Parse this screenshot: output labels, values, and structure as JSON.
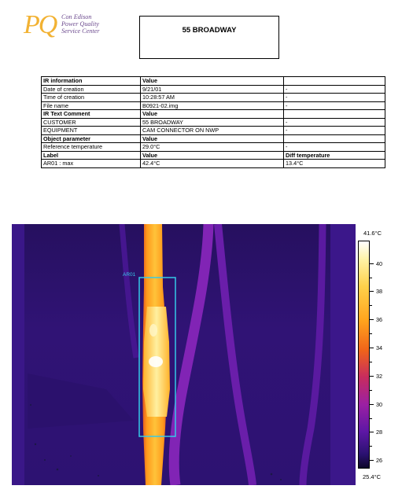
{
  "logo": {
    "mark": "PQ",
    "line1": "Con Edison",
    "line2": "Power Quality",
    "line3": "Service Center"
  },
  "title": "55 BROADWAY",
  "info_table": [
    {
      "cells": [
        "IR information",
        "Value",
        ""
      ],
      "header": true
    },
    {
      "cells": [
        "Date of creation",
        "9/21/01",
        "-"
      ]
    },
    {
      "cells": [
        "Time of creation",
        "10:28:57 AM",
        "-"
      ]
    },
    {
      "cells": [
        "File name",
        "B0921-02.img",
        "-"
      ]
    },
    {
      "cells": [
        "IR Text Comment",
        "Value",
        ""
      ],
      "header": true
    },
    {
      "cells": [
        "CUSTOMER",
        "55 BROADWAY",
        "-"
      ]
    },
    {
      "cells": [
        "EQUIPMENT",
        "CAM CONNECTOR ON NWP",
        "-"
      ]
    },
    {
      "cells": [
        "Object parameter",
        "Value",
        ""
      ],
      "header": true
    },
    {
      "cells": [
        "Reference temperature",
        "29.0°C",
        "-"
      ]
    },
    {
      "cells": [
        "Label",
        "Value",
        "Diff temperature"
      ],
      "header": true
    },
    {
      "cells": [
        "AR01 : max",
        "42.4°C",
        "13.4°C"
      ]
    }
  ],
  "thermal_image": {
    "region_label": "AR01"
  },
  "temperature_scale": {
    "max_label": "41.6°C",
    "min_label": "25.4°C",
    "min": 25.4,
    "max": 41.6,
    "tick_values": [
      40,
      38,
      36,
      34,
      32,
      30,
      28,
      26
    ],
    "tick_labels": [
      "40",
      "38",
      "36",
      "34",
      "32",
      "30",
      "28",
      "26"
    ]
  },
  "colors": {
    "logo_mark": "#f2b233",
    "logo_text": "#6c4a8e",
    "region_box": "#35c9e8"
  }
}
